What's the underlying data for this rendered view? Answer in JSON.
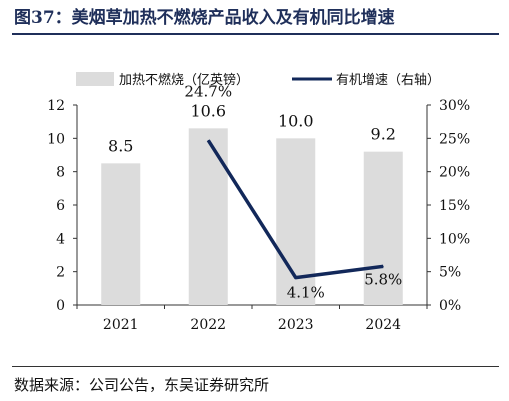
{
  "header": {
    "figure_no": "图37：",
    "title": "美烟草加热不燃烧产品收入及有机同比增速"
  },
  "source": "数据来源：公司公告，东吴证券研究所",
  "colors": {
    "bar": "#dcdcdc",
    "line": "#12285a",
    "text": "#111111"
  },
  "chart_data": {
    "type": "bar",
    "categories": [
      "2021",
      "2022",
      "2023",
      "2024"
    ],
    "series": [
      {
        "name": "加热不燃烧（亿英镑）",
        "type": "bar",
        "axis": "left",
        "values": [
          8.5,
          10.6,
          10.0,
          9.2
        ],
        "labels": [
          "8.5",
          "10.6",
          "10.0",
          "9.2"
        ]
      },
      {
        "name": "有机增速（右轴）",
        "type": "line",
        "axis": "right",
        "values": [
          null,
          24.7,
          4.1,
          5.8
        ],
        "labels": [
          "",
          "24.7%",
          "4.1%",
          "5.8%"
        ]
      }
    ],
    "y_left": {
      "lim": [
        0,
        12
      ],
      "ticks": [
        "0",
        "2",
        "4",
        "6",
        "8",
        "10",
        "12"
      ]
    },
    "y_right": {
      "lim": [
        0,
        30
      ],
      "ticks": [
        "0%",
        "5%",
        "10%",
        "15%",
        "20%",
        "25%",
        "30%"
      ]
    },
    "grid": false,
    "legend_position": "top"
  }
}
